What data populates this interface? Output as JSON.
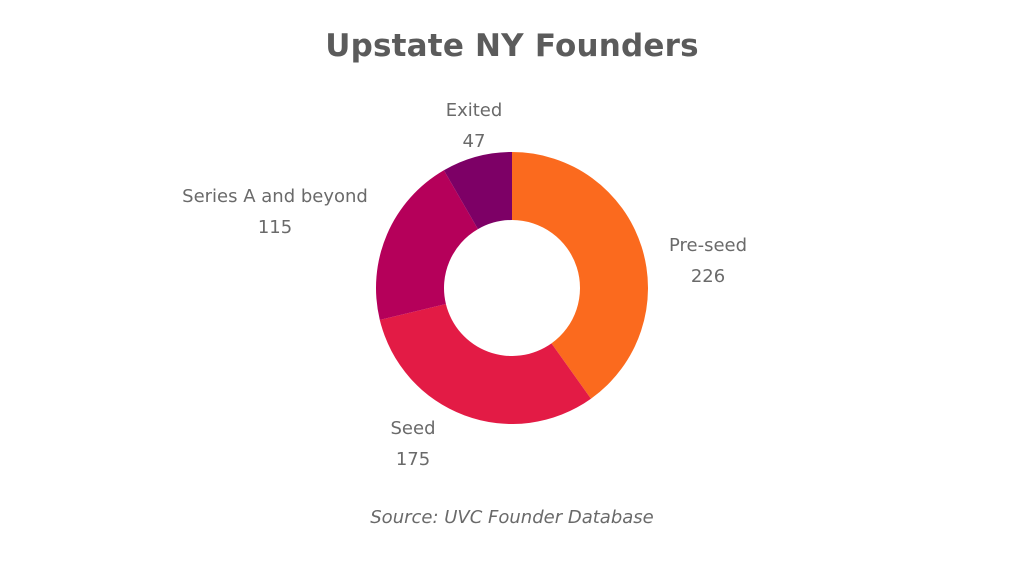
{
  "chart_data": {
    "type": "pie",
    "title": "Upstate NY Founders",
    "source": "Source: UVC Founder Database",
    "donut": true,
    "slices": [
      {
        "label": "Pre-seed",
        "value": 226,
        "color": "#fb6a1e"
      },
      {
        "label": "Seed",
        "value": 175,
        "color": "#e31b45"
      },
      {
        "label": "Series A and beyond",
        "value": 115,
        "color": "#b5005a"
      },
      {
        "label": "Exited",
        "value": 47,
        "color": "#7d0066"
      }
    ]
  }
}
